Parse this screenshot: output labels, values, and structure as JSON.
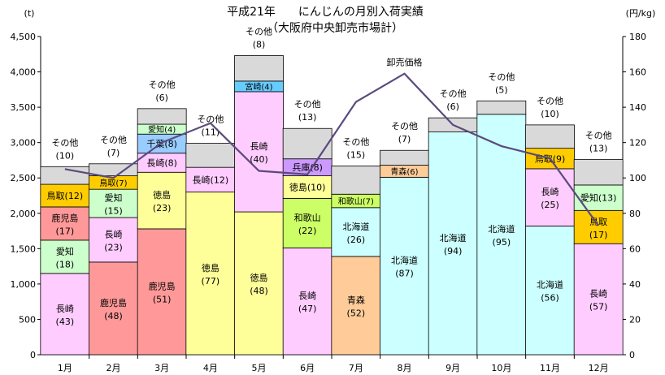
{
  "chart_data": {
    "type": "bar",
    "stacked": true,
    "title": "平成21年　　にんじんの月別入荷実績",
    "subtitle": "（大阪府中央卸売市場計）",
    "ylabel_left": "(t)",
    "ylabel_right": "(円/kg)",
    "ylim_left": [
      0,
      4500
    ],
    "ylim_right": [
      0,
      180
    ],
    "yticks_left": [
      "0",
      "500",
      "1,000",
      "1,500",
      "2,000",
      "2,500",
      "3,000",
      "3,500",
      "4,000",
      "4,500"
    ],
    "yticks_right": [
      "0",
      "20",
      "40",
      "60",
      "80",
      "100",
      "120",
      "140",
      "160",
      "180"
    ],
    "categories": [
      "1月",
      "2月",
      "3月",
      "4月",
      "5月",
      "6月",
      "7月",
      "8月",
      "9月",
      "10月",
      "11月",
      "12月"
    ],
    "grid": false,
    "months": [
      {
        "segments": [
          {
            "name": "長崎",
            "label": "(43)",
            "value": 1150,
            "color": "#ffccff"
          },
          {
            "name": "愛知",
            "label": "(18)",
            "value": 470,
            "color": "#ccffcc"
          },
          {
            "name": "鹿児島",
            "label": "(17)",
            "value": 470,
            "color": "#ff9999"
          },
          {
            "name": "鳥取",
            "label": "(12)",
            "value": 320,
            "color": "#ffcc00"
          },
          {
            "name": "その他",
            "label": "(10)",
            "value": 250,
            "color": "#d9d9d9"
          }
        ]
      },
      {
        "segments": [
          {
            "name": "鹿児島",
            "label": "(48)",
            "value": 1310,
            "color": "#ff9999"
          },
          {
            "name": "長崎",
            "label": "(23)",
            "value": 630,
            "color": "#ffccff"
          },
          {
            "name": "愛知",
            "label": "(15)",
            "value": 400,
            "color": "#ccffcc"
          },
          {
            "name": "鳥取",
            "label": "(7)",
            "value": 190,
            "color": "#ffcc00"
          },
          {
            "name": "その他",
            "label": "(7)",
            "value": 170,
            "color": "#d9d9d9"
          }
        ]
      },
      {
        "segments": [
          {
            "name": "鹿児島",
            "label": "(51)",
            "value": 1780,
            "color": "#ff9999"
          },
          {
            "name": "徳島",
            "label": "(23)",
            "value": 800,
            "color": "#ffff99"
          },
          {
            "name": "長崎",
            "label": "(8)",
            "value": 270,
            "color": "#ffccff"
          },
          {
            "name": "千葉",
            "label": "(8)",
            "value": 270,
            "color": "#99ccff"
          },
          {
            "name": "愛知",
            "label": "(4)",
            "value": 140,
            "color": "#ccffcc"
          },
          {
            "name": "その他",
            "label": "(6)",
            "value": 220,
            "color": "#d9d9d9"
          }
        ]
      },
      {
        "segments": [
          {
            "name": "徳島",
            "label": "(77)",
            "value": 2300,
            "color": "#ffff99"
          },
          {
            "name": "長崎",
            "label": "(12)",
            "value": 350,
            "color": "#ffccff"
          },
          {
            "name": "その他",
            "label": "(11)",
            "value": 340,
            "color": "#d9d9d9"
          }
        ]
      },
      {
        "segments": [
          {
            "name": "徳島",
            "label": "(48)",
            "value": 2020,
            "color": "#ffff99"
          },
          {
            "name": "長崎",
            "label": "(40)",
            "value": 1700,
            "color": "#ffccff"
          },
          {
            "name": "宮崎",
            "label": "(4)",
            "value": 150,
            "color": "#66ccff"
          },
          {
            "name": "その他",
            "label": "(8)",
            "value": 360,
            "color": "#d9d9d9"
          }
        ]
      },
      {
        "segments": [
          {
            "name": "長崎",
            "label": "(47)",
            "value": 1510,
            "color": "#ffccff"
          },
          {
            "name": "和歌山",
            "label": "(22)",
            "value": 700,
            "color": "#ccff66"
          },
          {
            "name": "徳島",
            "label": "(10)",
            "value": 320,
            "color": "#ffff99"
          },
          {
            "name": "兵庫",
            "label": "(8)",
            "value": 240,
            "color": "#cc99ff"
          },
          {
            "name": "その他",
            "label": "(13)",
            "value": 430,
            "color": "#d9d9d9"
          }
        ]
      },
      {
        "segments": [
          {
            "name": "青森",
            "label": "(52)",
            "value": 1390,
            "color": "#ffcc99"
          },
          {
            "name": "北海道",
            "label": "(26)",
            "value": 690,
            "color": "#ccffff"
          },
          {
            "name": "和歌山",
            "label": "(7)",
            "value": 190,
            "color": "#ccff66"
          },
          {
            "name": "その他",
            "label": "(15)",
            "value": 400,
            "color": "#d9d9d9"
          }
        ]
      },
      {
        "segments": [
          {
            "name": "北海道",
            "label": "(87)",
            "value": 2510,
            "color": "#ccffff"
          },
          {
            "name": "青森",
            "label": "(6)",
            "value": 170,
            "color": "#ffcc99"
          },
          {
            "name": "その他",
            "label": "(7)",
            "value": 210,
            "color": "#d9d9d9"
          }
        ]
      },
      {
        "segments": [
          {
            "name": "北海道",
            "label": "(94)",
            "value": 3150,
            "color": "#ccffff"
          },
          {
            "name": "その他",
            "label": "(6)",
            "value": 200,
            "color": "#d9d9d9"
          }
        ]
      },
      {
        "segments": [
          {
            "name": "北海道",
            "label": "(95)",
            "value": 3400,
            "color": "#ccffff"
          },
          {
            "name": "その他",
            "label": "(5)",
            "value": 190,
            "color": "#d9d9d9"
          }
        ]
      },
      {
        "segments": [
          {
            "name": "北海道",
            "label": "(56)",
            "value": 1820,
            "color": "#ccffff"
          },
          {
            "name": "長崎",
            "label": "(25)",
            "value": 810,
            "color": "#ffccff"
          },
          {
            "name": "鳥取",
            "label": "(9)",
            "value": 290,
            "color": "#ffcc00"
          },
          {
            "name": "その他",
            "label": "(10)",
            "value": 330,
            "color": "#d9d9d9"
          }
        ]
      },
      {
        "segments": [
          {
            "name": "長崎",
            "label": "(57)",
            "value": 1570,
            "color": "#ffccff"
          },
          {
            "name": "鳥取",
            "label": "(17)",
            "value": 470,
            "color": "#ffcc00"
          },
          {
            "name": "愛知",
            "label": "(13)",
            "value": 360,
            "color": "#ccffcc"
          },
          {
            "name": "その他",
            "label": "(13)",
            "value": 360,
            "color": "#d9d9d9"
          }
        ]
      }
    ],
    "price_series": {
      "name": "卸売価格",
      "axis": "right",
      "color": "#5b4a7d",
      "values": [
        105,
        100,
        120,
        131,
        104,
        102,
        143,
        159,
        130,
        118,
        111,
        73
      ]
    }
  }
}
